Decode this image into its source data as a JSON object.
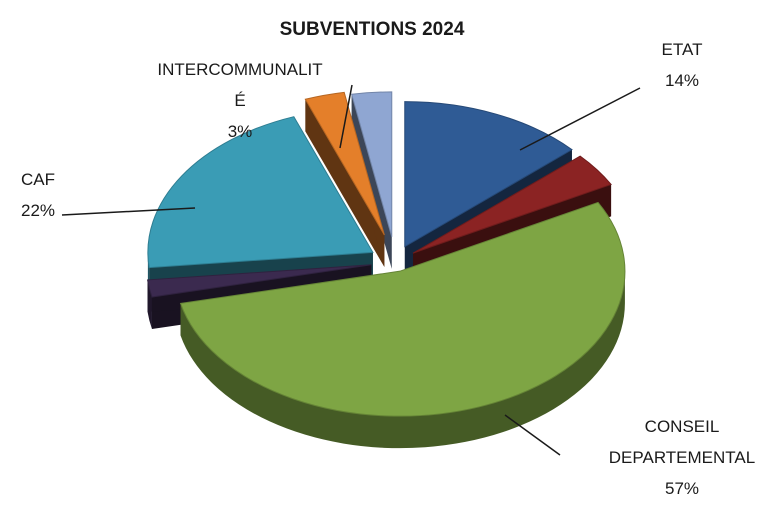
{
  "chart_data": {
    "type": "pie",
    "title": "SUBVENTIONS 2024",
    "slices": [
      {
        "label": "ETAT",
        "label_lines": [
          "ETAT"
        ],
        "percent_label": "14%",
        "value": 14,
        "color": "#2f5b95"
      },
      {
        "label": "",
        "label_lines": [],
        "percent_label": "",
        "value": 4,
        "color": "#8b2323"
      },
      {
        "label": "CONSEIL DEPARTEMENTAL",
        "label_lines": [
          "CONSEIL",
          "DEPARTEMENTAL"
        ],
        "percent_label": "57%",
        "value": 57,
        "color": "#7ea544"
      },
      {
        "label": "",
        "label_lines": [],
        "percent_label": "",
        "value": 2,
        "color": "#3b2a4f"
      },
      {
        "label": "CAF",
        "label_lines": [
          "CAF"
        ],
        "percent_label": "22%",
        "value": 22,
        "color": "#3a9cb5"
      },
      {
        "label": "INTERCOMMUNALITÉ",
        "label_lines": [
          "INTERCOMMUNALIT",
          "É"
        ],
        "percent_label": "3%",
        "value": 3,
        "color": "#e47f2a"
      },
      {
        "label": "",
        "label_lines": [],
        "percent_label": "",
        "value": 3,
        "color": "#8fa6d2"
      }
    ],
    "legend": "none",
    "style": "3d-exploded"
  }
}
